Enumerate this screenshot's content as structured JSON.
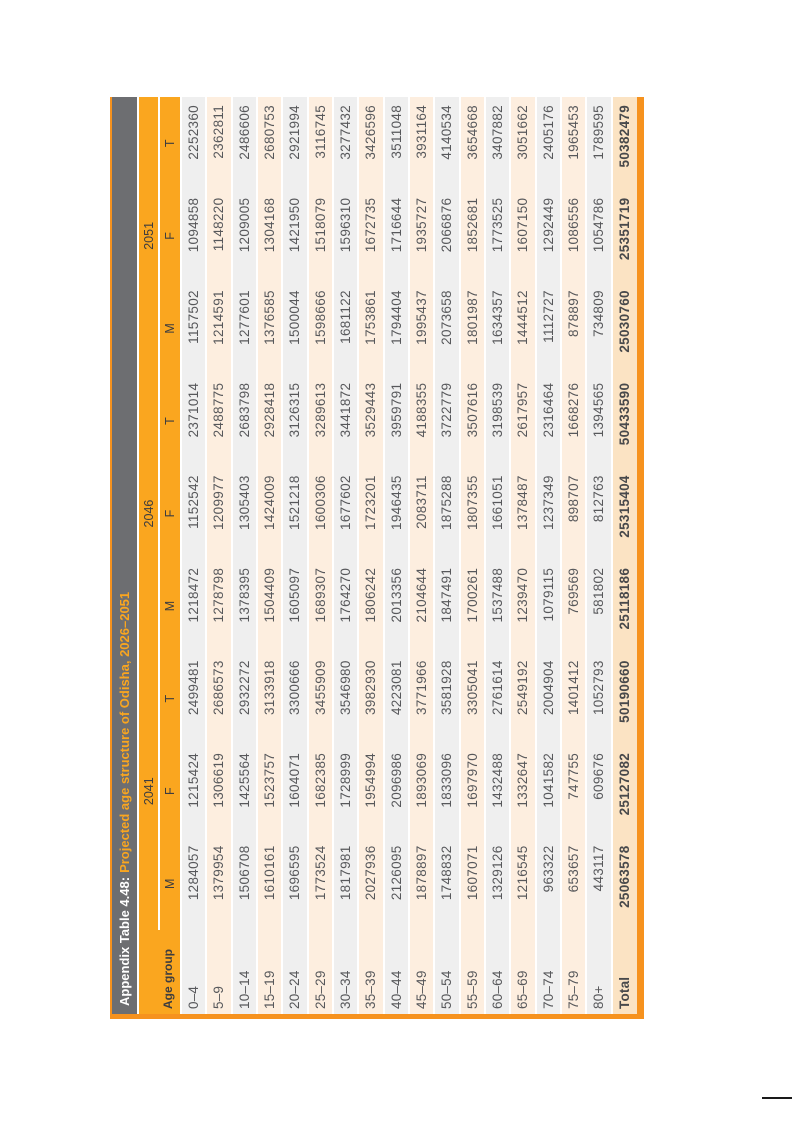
{
  "title": {
    "prefix": "Appendix Table 4.48:",
    "main": "Projected age structure of Odisha, 2026–2051"
  },
  "header": {
    "age_group": "Age group",
    "year_groups": [
      {
        "year": "2041",
        "sub": [
          "M",
          "F",
          "T"
        ]
      },
      {
        "year": "2046",
        "sub": [
          "M",
          "F",
          "T"
        ]
      },
      {
        "year": "2051",
        "sub": [
          "M",
          "F",
          "T"
        ]
      }
    ]
  },
  "rows": [
    {
      "age": "0–4",
      "values": [
        1284057,
        1215424,
        2499481,
        1218472,
        1152542,
        2371014,
        1157502,
        1094858,
        2252360
      ]
    },
    {
      "age": "5–9",
      "values": [
        1379954,
        1306619,
        2686573,
        1278798,
        1209977,
        2488775,
        1214591,
        1148220,
        2362811
      ]
    },
    {
      "age": "10–14",
      "values": [
        1506708,
        1425564,
        2932272,
        1378395,
        1305403,
        2683798,
        1277601,
        1209005,
        2486606
      ]
    },
    {
      "age": "15–19",
      "values": [
        1610161,
        1523757,
        3133918,
        1504409,
        1424009,
        2928418,
        1376585,
        1304168,
        2680753
      ]
    },
    {
      "age": "20–24",
      "values": [
        1696595,
        1604071,
        3300666,
        1605097,
        1521218,
        3126315,
        1500044,
        1421950,
        2921994
      ]
    },
    {
      "age": "25–29",
      "values": [
        1773524,
        1682385,
        3455909,
        1689307,
        1600306,
        3289613,
        1598666,
        1518079,
        3116745
      ]
    },
    {
      "age": "30–34",
      "values": [
        1817981,
        1728999,
        3546980,
        1764270,
        1677602,
        3441872,
        1681122,
        1596310,
        3277432
      ]
    },
    {
      "age": "35–39",
      "values": [
        2027936,
        1954994,
        3982930,
        1806242,
        1723201,
        3529443,
        1753861,
        1672735,
        3426596
      ]
    },
    {
      "age": "40–44",
      "values": [
        2126095,
        2096986,
        4223081,
        2013356,
        1946435,
        3959791,
        1794404,
        1716644,
        3511048
      ]
    },
    {
      "age": "45–49",
      "values": [
        1878897,
        1893069,
        3771966,
        2104644,
        2083711,
        4188355,
        1995437,
        1935727,
        3931164
      ]
    },
    {
      "age": "50–54",
      "values": [
        1748832,
        1833096,
        3581928,
        1847491,
        1875288,
        3722779,
        2073658,
        2066876,
        4140534
      ]
    },
    {
      "age": "55–59",
      "values": [
        1607071,
        1697970,
        3305041,
        1700261,
        1807355,
        3507616,
        1801987,
        1852681,
        3654668
      ]
    },
    {
      "age": "60–64",
      "values": [
        1329126,
        1432488,
        2761614,
        1537488,
        1661051,
        3198539,
        1634357,
        1773525,
        3407882
      ]
    },
    {
      "age": "65–69",
      "values": [
        1216545,
        1332647,
        2549192,
        1239470,
        1378487,
        2617957,
        1444512,
        1607150,
        3051662
      ]
    },
    {
      "age": "70–74",
      "values": [
        963322,
        1041582,
        2004904,
        1079115,
        1237349,
        2316464,
        1112727,
        1292449,
        2405176
      ]
    },
    {
      "age": "75–79",
      "values": [
        653657,
        747755,
        1401412,
        769569,
        898707,
        1668276,
        878897,
        1086556,
        1965453
      ]
    },
    {
      "age": "80+",
      "values": [
        443117,
        609676,
        1052793,
        581802,
        812763,
        1394565,
        734809,
        1054786,
        1789595
      ]
    }
  ],
  "total": {
    "age": "Total",
    "values": [
      25063578,
      25127082,
      50190660,
      25118186,
      25315404,
      50433590,
      25030760,
      25351719,
      50382479
    ]
  },
  "colors": {
    "header_orange": "#FAA61F",
    "border_orange": "#F6921E",
    "title_bar_gray": "#6D6E71",
    "row_gray": "#EFEFEF",
    "row_peach": "#FDEEDF",
    "total_row_bg": "#FBE3C3",
    "title_accent": "#FAA61F"
  }
}
